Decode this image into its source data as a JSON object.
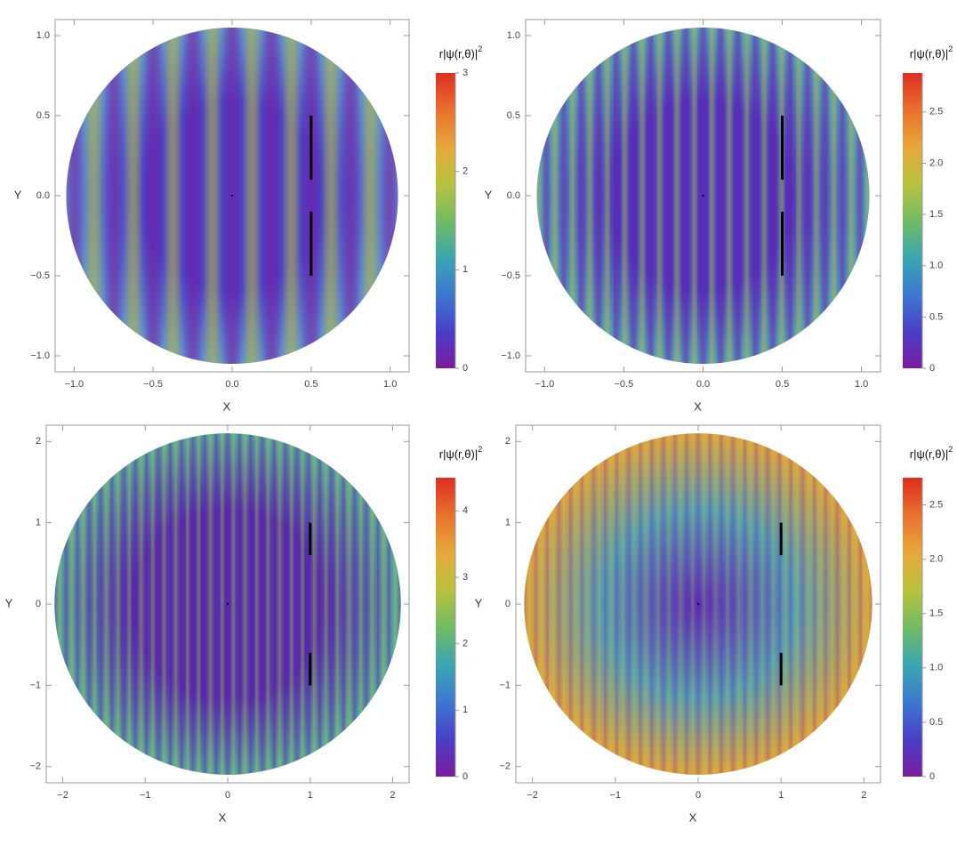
{
  "chart_data": [
    {
      "type": "density",
      "xlabel": "X",
      "ylabel": "Y",
      "colorbar_label": "r|ψ(r,θ)|",
      "colorbar_label_sup": "2",
      "xlim": [
        -1.12,
        1.12
      ],
      "ylim": [
        -1.1,
        1.1
      ],
      "xticks": [
        {
          "value": -1,
          "label": "−1.0"
        },
        {
          "value": -0.5,
          "label": "−0.5"
        },
        {
          "value": 0,
          "label": "0.0"
        },
        0.5,
        {
          "value": 1,
          "label": "1.0"
        }
      ],
      "yticks": [
        {
          "value": -1,
          "label": "−1.0"
        },
        {
          "value": -0.5,
          "label": "−0.5"
        },
        {
          "value": 0,
          "label": "0.0"
        },
        0.5,
        {
          "value": 1,
          "label": "1.0"
        }
      ],
      "radius": 1.05,
      "clim": [
        0,
        3
      ],
      "cticks": [
        0,
        1,
        2,
        3
      ],
      "barriers": [
        {
          "x": 0.5,
          "y": [
            0.1,
            0.5
          ]
        },
        {
          "x": 0.5,
          "y": [
            -0.1,
            -0.5
          ]
        }
      ]
    },
    {
      "type": "density",
      "xlabel": "X",
      "ylabel": "Y",
      "colorbar_label": "r|ψ(r,θ)|",
      "colorbar_label_sup": "2",
      "xlim": [
        -1.12,
        1.12
      ],
      "ylim": [
        -1.1,
        1.1
      ],
      "xticks": [
        {
          "value": -1,
          "label": "−1.0"
        },
        {
          "value": -0.5,
          "label": "−0.5"
        },
        {
          "value": 0,
          "label": "0.0"
        },
        0.5,
        {
          "value": 1,
          "label": "1.0"
        }
      ],
      "yticks": [
        {
          "value": -1,
          "label": "−1.0"
        },
        {
          "value": -0.5,
          "label": "−0.5"
        },
        {
          "value": 0,
          "label": "0.0"
        },
        0.5,
        {
          "value": 1,
          "label": "1.0"
        }
      ],
      "radius": 1.05,
      "clim": [
        0,
        2.88
      ],
      "cticks": [
        0,
        0.5,
        {
          "value": 1,
          "label": "1.0"
        },
        1.5,
        {
          "value": 2,
          "label": "2.0"
        },
        2.5
      ],
      "barriers": [
        {
          "x": 0.5,
          "y": [
            0.1,
            0.5
          ]
        },
        {
          "x": 0.5,
          "y": [
            -0.1,
            -0.5
          ]
        }
      ]
    },
    {
      "type": "density",
      "xlabel": "X",
      "ylabel": "Y",
      "colorbar_label": "r|ψ(r,θ)|",
      "colorbar_label_sup": "2",
      "xlim": [
        -2.2,
        2.2
      ],
      "ylim": [
        -2.2,
        2.2
      ],
      "xticks": [
        {
          "value": -2,
          "label": "−2"
        },
        {
          "value": -1,
          "label": "−1"
        },
        0,
        1,
        2
      ],
      "yticks": [
        {
          "value": -2,
          "label": "−2"
        },
        {
          "value": -1,
          "label": "−1"
        },
        0,
        1,
        2
      ],
      "radius": 2.1,
      "clim": [
        0,
        4.5
      ],
      "cticks": [
        0,
        1,
        2,
        3,
        4
      ],
      "barriers": [
        {
          "x": 1,
          "y": [
            0.6,
            1
          ]
        },
        {
          "x": 1,
          "y": [
            -0.6,
            -1
          ]
        }
      ]
    },
    {
      "type": "density",
      "xlabel": "X",
      "ylabel": "Y",
      "colorbar_label": "r|ψ(r,θ)|",
      "colorbar_label_sup": "2",
      "xlim": [
        -2.2,
        2.2
      ],
      "ylim": [
        -2.2,
        2.2
      ],
      "xticks": [
        {
          "value": -2,
          "label": "−2"
        },
        {
          "value": -1,
          "label": "−1"
        },
        0,
        1,
        2
      ],
      "yticks": [
        {
          "value": -2,
          "label": "−2"
        },
        {
          "value": -1,
          "label": "−1"
        },
        0,
        1,
        2
      ],
      "radius": 2.1,
      "clim": [
        0,
        2.75
      ],
      "cticks": [
        0,
        0.5,
        {
          "value": 1,
          "label": "1.0"
        },
        1.5,
        {
          "value": 2,
          "label": "2.0"
        },
        2.5
      ],
      "barriers": [
        {
          "x": 1,
          "y": [
            0.6,
            1
          ]
        },
        {
          "x": 1,
          "y": [
            -0.6,
            -1
          ]
        }
      ]
    }
  ]
}
